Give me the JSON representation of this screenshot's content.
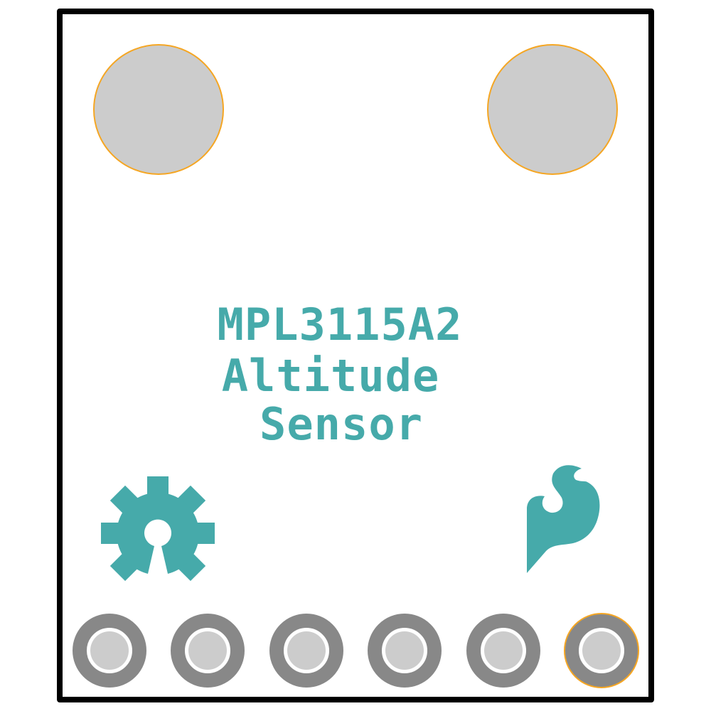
{
  "board": {
    "title_line1": "MPL3115A2",
    "title_line2": "Altitude",
    "title_line3": "Sensor"
  },
  "colors": {
    "outline": "#000000",
    "silkscreen": "#46aaaa",
    "mounting_hole_fill": "#cccccc",
    "mounting_hole_ring": "#f5a623",
    "pad_ring": "#888888",
    "pad_drill": "#cccccc",
    "pin1_highlight": "#f5a623"
  },
  "icons": {
    "left_logo": "open-hardware-gear-icon",
    "right_logo": "sparkfun-flame-icon"
  },
  "header_pins": {
    "count": 6,
    "pin1_position": "right"
  }
}
